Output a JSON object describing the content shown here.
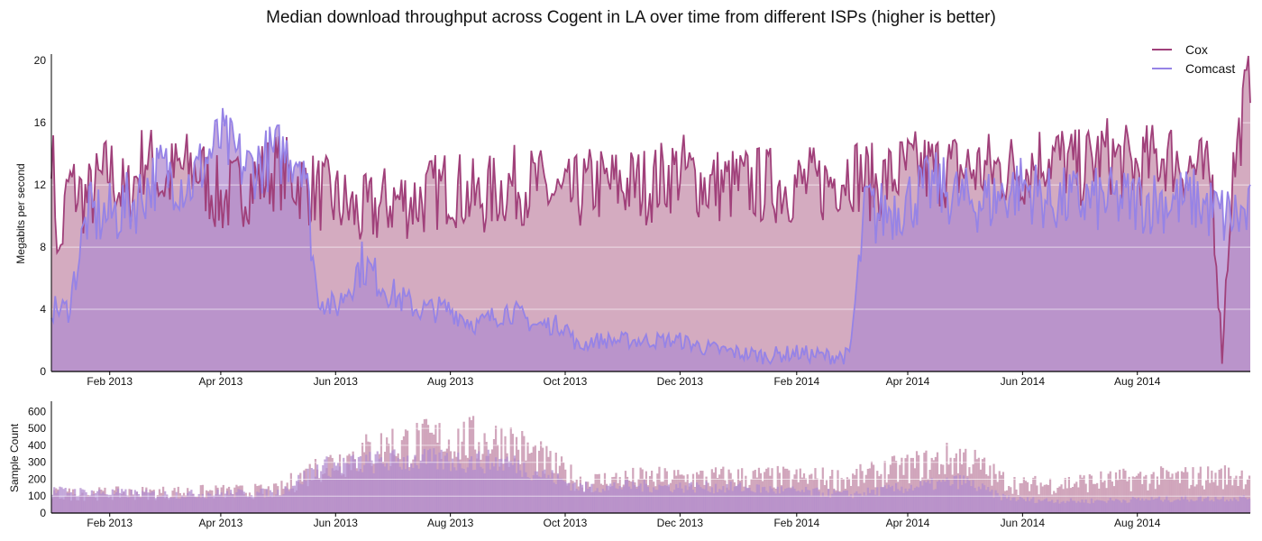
{
  "colors": {
    "cox": "#a0407a",
    "comcast": "#9683e6",
    "cox_fill": "#cc9cb5",
    "comcast_fill": "#b28ccf",
    "grid": "#ffffff"
  },
  "chart_data": [
    {
      "type": "line",
      "title": "Median download throughput across Cogent in LA over time from different ISPs (higher is better)",
      "xlabel": "",
      "ylabel": "Megabits per second",
      "ylim": [
        0,
        20.3
      ],
      "xlim": [
        "2013-01-01",
        "2014-09-30"
      ],
      "yticks": [
        0,
        4,
        8,
        12,
        16,
        20
      ],
      "xticks": [
        "Feb 2013",
        "Apr 2013",
        "Jun 2013",
        "Aug 2013",
        "Oct 2013",
        "Dec 2013",
        "Feb 2014",
        "Apr 2014",
        "Jun 2014",
        "Aug 2014"
      ],
      "grid": true,
      "legend": "top-right",
      "series": [
        {
          "name": "Cox",
          "color": "#a0407a",
          "x": [
            "2013-01-01",
            "2013-01-05",
            "2013-01-10",
            "2013-01-20",
            "2013-02-01",
            "2013-02-10",
            "2013-02-20",
            "2013-03-01",
            "2013-03-10",
            "2013-03-20",
            "2013-04-01",
            "2013-04-15",
            "2013-05-01",
            "2013-05-15",
            "2013-06-01",
            "2013-06-15",
            "2013-07-01",
            "2013-07-15",
            "2013-08-01",
            "2013-08-15",
            "2013-09-01",
            "2013-09-15",
            "2013-10-01",
            "2013-10-15",
            "2013-11-01",
            "2013-11-15",
            "2013-12-01",
            "2013-12-15",
            "2014-01-01",
            "2014-01-15",
            "2014-02-01",
            "2014-02-15",
            "2014-03-01",
            "2014-03-15",
            "2014-04-01",
            "2014-04-15",
            "2014-05-01",
            "2014-05-15",
            "2014-06-01",
            "2014-06-15",
            "2014-07-01",
            "2014-07-15",
            "2014-08-01",
            "2014-08-15",
            "2014-09-01",
            "2014-09-10",
            "2014-09-15",
            "2014-09-20",
            "2014-09-30"
          ],
          "y": [
            15,
            7,
            12,
            11,
            13,
            11,
            14,
            12,
            13,
            13,
            11,
            12,
            13,
            12,
            11,
            10,
            11,
            11,
            12,
            11,
            12,
            12,
            11,
            12,
            12,
            12,
            13,
            12,
            12,
            12,
            12,
            12,
            13,
            12,
            13,
            13,
            13,
            13,
            13,
            14,
            13,
            14,
            13,
            14,
            13,
            12,
            1,
            12,
            19.5
          ]
        },
        {
          "name": "Comcast",
          "color": "#9683e6",
          "x": [
            "2013-01-01",
            "2013-01-10",
            "2013-01-20",
            "2013-02-01",
            "2013-02-15",
            "2013-03-01",
            "2013-03-15",
            "2013-04-01",
            "2013-04-15",
            "2013-05-01",
            "2013-05-15",
            "2013-05-22",
            "2013-06-01",
            "2013-06-15",
            "2013-07-01",
            "2013-07-15",
            "2013-08-01",
            "2013-08-15",
            "2013-09-01",
            "2013-09-15",
            "2013-10-01",
            "2013-10-08",
            "2013-10-15",
            "2013-11-01",
            "2013-11-15",
            "2013-12-01",
            "2013-12-15",
            "2014-01-01",
            "2014-01-15",
            "2014-02-01",
            "2014-02-15",
            "2014-03-01",
            "2014-03-10",
            "2014-03-15",
            "2014-04-01",
            "2014-04-15",
            "2014-05-01",
            "2014-05-15",
            "2014-06-01",
            "2014-06-15",
            "2014-07-01",
            "2014-07-15",
            "2014-08-01",
            "2014-08-15",
            "2014-09-01",
            "2014-09-15",
            "2014-09-30"
          ],
          "y": [
            4,
            4,
            10,
            10,
            11,
            13,
            12,
            15,
            13,
            14,
            14,
            5,
            4,
            7,
            5,
            4,
            4,
            3,
            4,
            3,
            3,
            1.5,
            2,
            2,
            2,
            2,
            1.5,
            1.2,
            1,
            1.2,
            1,
            1,
            11,
            10,
            11,
            12,
            11,
            11,
            12,
            11,
            11,
            11,
            11,
            11,
            11,
            10,
            10
          ]
        }
      ]
    },
    {
      "type": "bar",
      "title": "",
      "xlabel": "",
      "ylabel": "Sample Count",
      "ylim": [
        0,
        650
      ],
      "xlim": [
        "2013-01-01",
        "2014-09-30"
      ],
      "yticks": [
        0,
        100,
        200,
        300,
        400,
        500,
        600
      ],
      "xticks": [
        "Feb 2013",
        "Apr 2013",
        "Jun 2013",
        "Aug 2013",
        "Oct 2013",
        "Dec 2013",
        "Feb 2014",
        "Apr 2014",
        "Jun 2014",
        "Aug 2014"
      ],
      "grid": true,
      "series": [
        {
          "name": "Cox",
          "color": "#cc9cb5",
          "x": [
            "2013-01-01",
            "2013-03-01",
            "2013-05-01",
            "2013-05-24",
            "2013-07-01",
            "2013-08-01",
            "2013-09-01",
            "2013-10-10",
            "2013-11-01",
            "2014-01-01",
            "2014-03-01",
            "2014-05-01",
            "2014-05-20",
            "2014-06-01",
            "2014-07-01",
            "2014-08-01",
            "2014-09-30"
          ],
          "y": [
            110,
            120,
            130,
            280,
            400,
            430,
            420,
            180,
            200,
            210,
            200,
            330,
            200,
            160,
            180,
            200,
            220
          ]
        },
        {
          "name": "Comcast",
          "color": "#b28ccf",
          "x": [
            "2013-01-01",
            "2013-03-01",
            "2013-05-01",
            "2013-05-24",
            "2013-07-01",
            "2013-08-01",
            "2013-09-01",
            "2013-10-10",
            "2013-11-01",
            "2014-01-01",
            "2014-03-01",
            "2014-05-01",
            "2014-05-20",
            "2014-06-01",
            "2014-07-01",
            "2014-08-01",
            "2014-09-30"
          ],
          "y": [
            130,
            110,
            120,
            270,
            310,
            310,
            300,
            150,
            160,
            150,
            110,
            190,
            100,
            80,
            70,
            80,
            90
          ]
        }
      ]
    }
  ],
  "legend": [
    {
      "label": "Cox",
      "color": "#a0407a"
    },
    {
      "label": "Comcast",
      "color": "#9683e6"
    }
  ]
}
